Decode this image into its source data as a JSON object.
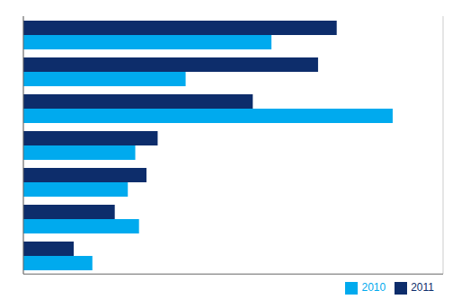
{
  "chart_data": {
    "type": "bar",
    "orientation": "horizontal",
    "categories": [
      null,
      null,
      null,
      null,
      null,
      null,
      null
    ],
    "series": [
      {
        "name": "2011",
        "color": "#0d2d6b",
        "values": [
          1680,
          1580,
          1230,
          720,
          660,
          490,
          270
        ]
      },
      {
        "name": "2010",
        "color": "#00aaee",
        "values": [
          1330,
          870,
          1980,
          600,
          560,
          620,
          370
        ]
      }
    ],
    "xlim": [
      0,
      2250
    ],
    "xticks": [
      500,
      1000,
      1500,
      2000
    ],
    "grid": true,
    "legend": "lower right",
    "tick_labels": false
  }
}
